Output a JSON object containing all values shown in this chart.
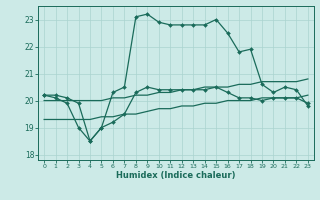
{
  "xlabel": "Humidex (Indice chaleur)",
  "background_color": "#cceae7",
  "line_color": "#1a6b5a",
  "grid_color": "#aad4d0",
  "ylim": [
    17.8,
    23.5
  ],
  "xlim": [
    -0.5,
    23.5
  ],
  "yticks": [
    18,
    19,
    20,
    21,
    22,
    23
  ],
  "xticks": [
    0,
    1,
    2,
    3,
    4,
    5,
    6,
    7,
    8,
    9,
    10,
    11,
    12,
    13,
    14,
    15,
    16,
    17,
    18,
    19,
    20,
    21,
    22,
    23
  ],
  "line1_x": [
    0,
    1,
    2,
    3,
    4,
    5,
    6,
    7,
    8,
    9,
    10,
    11,
    12,
    13,
    14,
    15,
    16,
    17,
    18,
    19,
    20,
    21,
    22,
    23
  ],
  "line1_y": [
    20.2,
    20.2,
    20.1,
    19.9,
    18.5,
    19.0,
    20.3,
    20.5,
    23.1,
    23.2,
    22.9,
    22.8,
    22.8,
    22.8,
    22.8,
    23.0,
    22.5,
    21.8,
    21.9,
    20.6,
    20.3,
    20.5,
    20.4,
    19.8
  ],
  "line2_x": [
    0,
    1,
    2,
    3,
    4,
    5,
    6,
    7,
    8,
    9,
    10,
    11,
    12,
    13,
    14,
    15,
    16,
    17,
    18,
    19,
    20,
    21,
    22,
    23
  ],
  "line2_y": [
    20.2,
    20.1,
    19.9,
    19.0,
    18.5,
    19.0,
    19.2,
    19.5,
    20.3,
    20.5,
    20.4,
    20.4,
    20.4,
    20.4,
    20.4,
    20.5,
    20.3,
    20.1,
    20.1,
    20.0,
    20.1,
    20.1,
    20.1,
    19.9
  ],
  "line3_x": [
    0,
    1,
    2,
    3,
    4,
    5,
    6,
    7,
    8,
    9,
    10,
    11,
    12,
    13,
    14,
    15,
    16,
    17,
    18,
    19,
    20,
    21,
    22,
    23
  ],
  "line3_y": [
    20.0,
    20.0,
    20.0,
    20.0,
    20.0,
    20.0,
    20.1,
    20.1,
    20.2,
    20.2,
    20.3,
    20.3,
    20.4,
    20.4,
    20.5,
    20.5,
    20.5,
    20.6,
    20.6,
    20.7,
    20.7,
    20.7,
    20.7,
    20.8
  ],
  "line4_x": [
    0,
    1,
    2,
    3,
    4,
    5,
    6,
    7,
    8,
    9,
    10,
    11,
    12,
    13,
    14,
    15,
    16,
    17,
    18,
    19,
    20,
    21,
    22,
    23
  ],
  "line4_y": [
    19.3,
    19.3,
    19.3,
    19.3,
    19.3,
    19.4,
    19.4,
    19.5,
    19.5,
    19.6,
    19.7,
    19.7,
    19.8,
    19.8,
    19.9,
    19.9,
    20.0,
    20.0,
    20.0,
    20.1,
    20.1,
    20.1,
    20.1,
    20.2
  ]
}
